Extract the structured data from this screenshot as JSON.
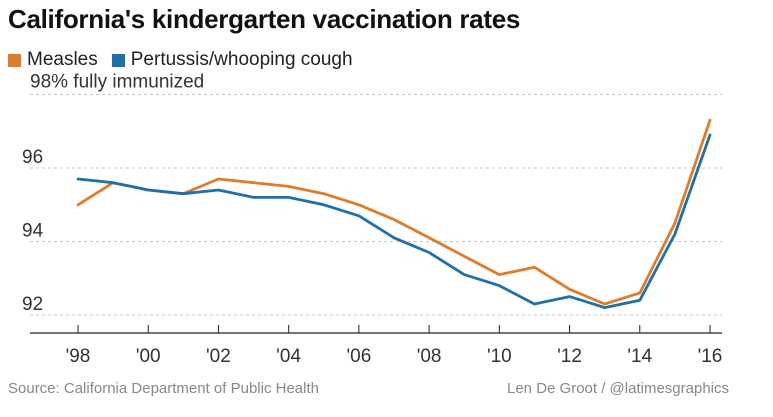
{
  "title": "California's kindergarten vaccination rates",
  "footer": {
    "source": "Source: California Department of Public Health",
    "credit": "Len De Groot / @latimesgraphics"
  },
  "chart_data": {
    "type": "line",
    "title": "California's kindergarten vaccination rates",
    "xlabel": "",
    "ylabel": "",
    "xlim": [
      1998,
      2016
    ],
    "ylim": [
      91.5,
      98
    ],
    "x_ticks": [
      {
        "value": 1998,
        "label": "'98"
      },
      {
        "value": 2000,
        "label": "'00"
      },
      {
        "value": 2002,
        "label": "'02"
      },
      {
        "value": 2004,
        "label": "'04"
      },
      {
        "value": 2006,
        "label": "'06"
      },
      {
        "value": 2008,
        "label": "'08"
      },
      {
        "value": 2010,
        "label": "'10"
      },
      {
        "value": 2012,
        "label": "'12"
      },
      {
        "value": 2014,
        "label": "'14"
      },
      {
        "value": 2016,
        "label": "'16"
      }
    ],
    "y_ticks": [
      {
        "value": 98,
        "label": "98% fully immunized"
      },
      {
        "value": 96,
        "label": "96"
      },
      {
        "value": 94,
        "label": "94"
      },
      {
        "value": 92,
        "label": "92"
      }
    ],
    "grid": true,
    "legend_position": "top-left",
    "x": [
      1998,
      1999,
      2000,
      2001,
      2002,
      2003,
      2004,
      2005,
      2006,
      2007,
      2008,
      2009,
      2010,
      2011,
      2012,
      2013,
      2014,
      2015,
      2016
    ],
    "series": [
      {
        "name": "Measles",
        "color": "#e07b28",
        "values": [
          95.0,
          95.6,
          95.4,
          95.3,
          95.7,
          95.6,
          95.5,
          95.3,
          95.0,
          94.6,
          94.1,
          93.6,
          93.1,
          93.3,
          92.7,
          92.3,
          92.6,
          94.5,
          97.3
        ]
      },
      {
        "name": "Pertussis/whooping cough",
        "color": "#1f6fa8",
        "values": [
          95.7,
          95.6,
          95.4,
          95.3,
          95.4,
          95.2,
          95.2,
          95.0,
          94.7,
          94.1,
          93.7,
          93.1,
          92.8,
          92.3,
          92.5,
          92.2,
          92.4,
          94.2,
          96.9
        ]
      }
    ]
  }
}
